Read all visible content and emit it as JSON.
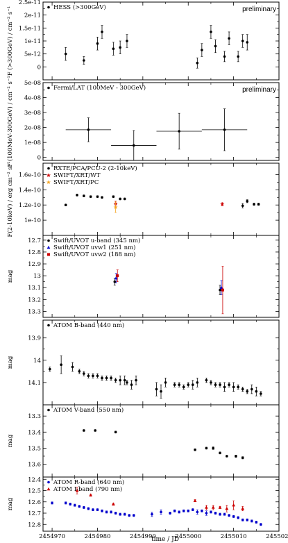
{
  "figure": {
    "xlabel": "time / JD",
    "x_ticks": [
      2454970,
      2454980,
      2454990,
      2455000,
      2455010,
      2455020
    ],
    "x_tick_labels": [
      "2454970",
      "2454980",
      "2454990",
      "2455000",
      "2455010",
      "2455020"
    ]
  },
  "chart_data": [
    {
      "type": "scatter",
      "ylabel": "F (>300GeV) / cm⁻² s⁻¹",
      "ylim": [
        -5e-12,
        2.5e-11
      ],
      "y_ticks": [
        0,
        5e-12,
        1e-11,
        1.5e-11,
        2e-11,
        2.5e-11
      ],
      "y_tick_labels": [
        "0",
        "5e-12",
        "1e-11",
        "1.5e-11",
        "2e-11",
        "2.5e-11"
      ],
      "annotation": "preliminary",
      "series": [
        {
          "name": "HESS  (>300GeV)",
          "color": "#000000",
          "marker": "circle",
          "x": [
            2454973,
            2454977,
            2454980,
            2454981,
            2454983.5,
            2454985,
            2454986.5,
            2455002,
            2455003,
            2455005,
            2455006,
            2455008,
            2455009,
            2455011,
            2455012,
            2455013
          ],
          "y": [
            5e-12,
            2.5e-12,
            9e-12,
            1.35e-11,
            7e-12,
            7.5e-12,
            1e-11,
            1.5e-12,
            6.5e-12,
            1.35e-11,
            8e-12,
            4e-12,
            1.1e-11,
            4e-12,
            1e-11,
            9.5e-12
          ],
          "yerr": [
            2.5e-12,
            1.5e-12,
            2.5e-12,
            2.5e-12,
            2.5e-12,
            2.5e-12,
            2.5e-12,
            2e-12,
            2.5e-12,
            2.5e-12,
            2.5e-12,
            2e-12,
            2.5e-12,
            2e-12,
            2.5e-12,
            3e-12
          ]
        }
      ]
    },
    {
      "type": "scatter",
      "ylabel": "F (100MeV-300GeV) / cm⁻² s⁻¹",
      "ylim": [
        -2e-09,
        5e-08
      ],
      "y_ticks": [
        0,
        1e-08,
        2e-08,
        3e-08,
        4e-08,
        5e-08
      ],
      "y_tick_labels": [
        "0",
        "1e-08",
        "2e-08",
        "3e-08",
        "4e-08",
        "5e-08"
      ],
      "annotation": "preliminary",
      "series": [
        {
          "name": "Fermi/LAT (100MeV - 300GeV)",
          "color": "#000000",
          "marker": "circle",
          "x": [
            2454978,
            2454988,
            2454998,
            2455008
          ],
          "y": [
            1.85e-08,
            8e-09,
            1.75e-08,
            1.85e-08
          ],
          "xerr": [
            5,
            5,
            5,
            5
          ],
          "yerr": [
            8e-09,
            1e-08,
            1.2e-08,
            1.4e-08
          ]
        }
      ]
    },
    {
      "type": "scatter",
      "ylabel": "F(2-10keV) / erg cm⁻² s⁻¹",
      "ylim": [
        8e-11,
        1.75e-10
      ],
      "y_ticks": [
        1e-10,
        1.2e-10,
        1.4e-10,
        1.6e-10
      ],
      "y_tick_labels": [
        "1e-10",
        "1.2e-10",
        "1.4e-10",
        "1.6e-10"
      ],
      "series": [
        {
          "name": "RXTE/PCA/PCU-2 (2-10keV)",
          "color": "#000000",
          "marker": "circle",
          "x": [
            2454973,
            2454975.5,
            2454977,
            2454978.5,
            2454980,
            2454981,
            2454983.5,
            2454985,
            2454986,
            2455012,
            2455013,
            2455014.5,
            2455015.5
          ],
          "y": [
            1.2e-10,
            1.33e-10,
            1.32e-10,
            1.31e-10,
            1.31e-10,
            1.3e-10,
            1.31e-10,
            1.28e-10,
            1.28e-10,
            1.19e-10,
            1.25e-10,
            1.21e-10,
            1.21e-10
          ],
          "yerr": [
            1e-12,
            1.2e-12,
            1.2e-12,
            1.2e-12,
            1.2e-12,
            1.2e-12,
            1.2e-12,
            1.2e-12,
            1.2e-12,
            3e-12,
            2e-12,
            1.5e-12,
            1.5e-12
          ]
        },
        {
          "name": "SWIFT/XRT/WT",
          "color": "#cc0000",
          "marker": "star",
          "x": [
            2454984,
            2455007.5
          ],
          "y": [
            1.22e-10,
            1.21e-10
          ],
          "yerr": [
            3e-12,
            2e-12
          ]
        },
        {
          "name": "SWIFT/XRT/PC",
          "color": "#f5a623",
          "marker": "star",
          "x": [
            2454984
          ],
          "y": [
            1.17e-10
          ],
          "yerr": [
            7e-12
          ]
        }
      ]
    },
    {
      "type": "scatter",
      "ylabel": "mag",
      "ylim": [
        13.35,
        12.66
      ],
      "y_ticks": [
        12.7,
        12.8,
        12.9,
        13.0,
        13.1,
        13.2,
        13.3
      ],
      "y_tick_labels": [
        "12.7",
        "12.8",
        "12.9",
        "13",
        "13.1",
        "13.2",
        "13.3"
      ],
      "series": [
        {
          "name": "Swift/UVOT u-band (345 nm)",
          "color": "#000000",
          "marker": "circle",
          "x": [
            2454983.8,
            2455007
          ],
          "y": [
            13.05,
            13.12
          ],
          "yerr": [
            0.03,
            0.04
          ]
        },
        {
          "name": "Swift/UVOT uvw1 (251 nm)",
          "color": "#0000cc",
          "marker": "triangle",
          "x": [
            2454984.1,
            2455007.3
          ],
          "y": [
            13.02,
            13.1
          ],
          "yerr": [
            0.04,
            0.06
          ]
        },
        {
          "name": "Swift/UVOT uvw2 (188 nm)",
          "color": "#cc0000",
          "marker": "square",
          "x": [
            2454984.4,
            2455007.6
          ],
          "y": [
            13.0,
            13.12
          ],
          "yerr": [
            0.05,
            0.2
          ]
        }
      ]
    },
    {
      "type": "scatter",
      "ylabel": "mag",
      "ylim": [
        14.2,
        13.82
      ],
      "y_ticks": [
        13.9,
        14.0,
        14.1
      ],
      "y_tick_labels": [
        "13.9",
        "14",
        "14.1"
      ],
      "series": [
        {
          "name": "ATOM B-band (440 nm)",
          "color": "#000000",
          "marker": "circle",
          "x": [
            2454969.5,
            2454972,
            2454974.5,
            2454976,
            2454977,
            2454978,
            2454979,
            2454980,
            2454981,
            2454982,
            2454983,
            2454984,
            2454985,
            2454986,
            2454986.5,
            2454987.5,
            2454988.5,
            2454993,
            2454994,
            2454995,
            2454997,
            2454998,
            2454999,
            2455000,
            2455001,
            2455002,
            2455004,
            2455005,
            2455006,
            2455007,
            2455008,
            2455009,
            2455010,
            2455011,
            2455012,
            2455013,
            2455014,
            2455015,
            2455016
          ],
          "y": [
            14.04,
            14.02,
            14.03,
            14.05,
            14.06,
            14.07,
            14.07,
            14.07,
            14.08,
            14.08,
            14.08,
            14.09,
            14.09,
            14.09,
            14.1,
            14.11,
            14.09,
            14.13,
            14.14,
            14.1,
            14.11,
            14.11,
            14.12,
            14.11,
            14.11,
            14.1,
            14.09,
            14.1,
            14.11,
            14.11,
            14.12,
            14.11,
            14.12,
            14.12,
            14.13,
            14.14,
            14.13,
            14.14,
            14.15
          ],
          "yerr": [
            0.01,
            0.04,
            0.02,
            0.01,
            0.01,
            0.01,
            0.01,
            0.01,
            0.01,
            0.01,
            0.01,
            0.01,
            0.02,
            0.02,
            0.01,
            0.02,
            0.02,
            0.03,
            0.03,
            0.02,
            0.01,
            0.01,
            0.01,
            0.01,
            0.02,
            0.02,
            0.01,
            0.01,
            0.01,
            0.01,
            0.02,
            0.01,
            0.02,
            0.01,
            0.01,
            0.01,
            0.02,
            0.02,
            0.01
          ]
        }
      ]
    },
    {
      "type": "scatter",
      "ylabel": "mag",
      "ylim": [
        13.68,
        13.23
      ],
      "y_ticks": [
        13.3,
        13.4,
        13.5,
        13.6
      ],
      "y_tick_labels": [
        "13.3",
        "13.4",
        "13.5",
        "13.6"
      ],
      "series": [
        {
          "name": "ATOM V-band (550 nm)",
          "color": "#000000",
          "marker": "circle",
          "x": [
            2454977,
            2454979.5,
            2454984,
            2455001.5,
            2455004,
            2455005.5,
            2455007,
            2455008.5,
            2455010.5,
            2455012
          ],
          "y": [
            13.39,
            13.39,
            13.4,
            13.51,
            13.5,
            13.5,
            13.53,
            13.55,
            13.55,
            13.56
          ],
          "yerr": [
            0.005,
            0.005,
            0.006,
            0.006,
            0.006,
            0.008,
            0.006,
            0.005,
            0.007,
            0.007
          ]
        }
      ]
    },
    {
      "type": "scatter",
      "ylabel": "mag",
      "ylim": [
        12.86,
        12.38
      ],
      "y_ticks": [
        12.4,
        12.5,
        12.6,
        12.7,
        12.8
      ],
      "y_tick_labels": [
        "12.4",
        "12.5",
        "12.6",
        "12.7",
        "12.8"
      ],
      "series": [
        {
          "name": "ATOM R-band (640 nm)",
          "color": "#0000cc",
          "marker": "circle",
          "x": [
            2454970,
            2454973,
            2454974,
            2454975,
            2454976,
            2454977,
            2454978,
            2454979,
            2454980,
            2454981,
            2454982,
            2454983,
            2454984,
            2454985,
            2454986,
            2454987,
            2454988,
            2454992,
            2454994,
            2454996,
            2454997,
            2454998,
            2454999,
            2455000,
            2455001,
            2455002,
            2455003,
            2455004,
            2455005,
            2455006,
            2455007,
            2455008,
            2455009,
            2455010,
            2455011,
            2455012,
            2455013,
            2455014,
            2455015,
            2455016
          ],
          "y": [
            12.61,
            12.61,
            12.62,
            12.63,
            12.64,
            12.65,
            12.66,
            12.67,
            12.67,
            12.68,
            12.69,
            12.69,
            12.7,
            12.71,
            12.71,
            12.72,
            12.72,
            12.71,
            12.69,
            12.7,
            12.68,
            12.69,
            12.68,
            12.68,
            12.67,
            12.69,
            12.68,
            12.7,
            12.69,
            12.7,
            12.71,
            12.71,
            12.72,
            12.73,
            12.74,
            12.76,
            12.76,
            12.77,
            12.78,
            12.8
          ],
          "yerr": [
            0.01,
            0.01,
            0.01,
            0.01,
            0.01,
            0.01,
            0.01,
            0.01,
            0.01,
            0.01,
            0.01,
            0.01,
            0.01,
            0.01,
            0.01,
            0.01,
            0.01,
            0.02,
            0.02,
            0.01,
            0.01,
            0.01,
            0.01,
            0.01,
            0.01,
            0.02,
            0.01,
            0.02,
            0.01,
            0.01,
            0.01,
            0.01,
            0.01,
            0.01,
            0.01,
            0.01,
            0.01,
            0.01,
            0.01,
            0.01
          ]
        },
        {
          "name": "ATOM I-band (790 nm)",
          "color": "#cc0000",
          "marker": "triangle",
          "x": [
            2454975.5,
            2454978.5,
            2454983.5,
            2455001.5,
            2455004,
            2455005.5,
            2455007,
            2455008.5,
            2455010,
            2455012
          ],
          "y": [
            12.5,
            12.54,
            12.62,
            12.59,
            12.65,
            12.65,
            12.65,
            12.66,
            12.63,
            12.66
          ],
          "yerr": [
            0.03,
            0.01,
            0.01,
            0.01,
            0.02,
            0.02,
            0.01,
            0.03,
            0.04,
            0.02
          ]
        }
      ]
    }
  ]
}
